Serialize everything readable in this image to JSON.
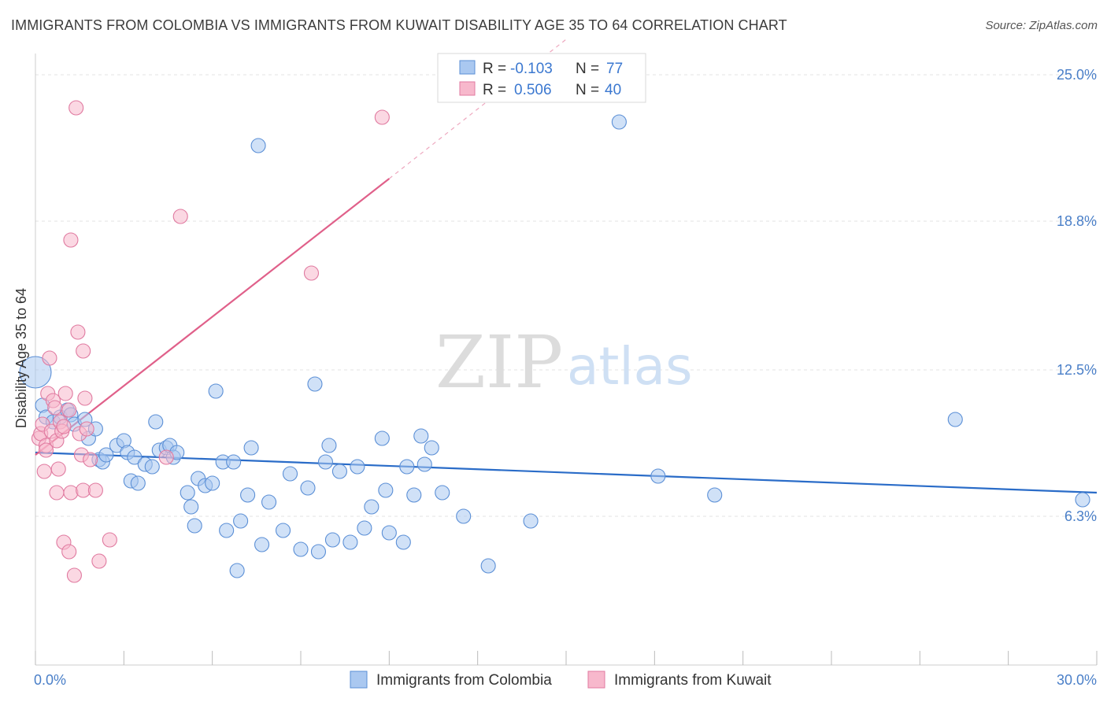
{
  "title": "IMMIGRANTS FROM COLOMBIA VS IMMIGRANTS FROM KUWAIT DISABILITY AGE 35 TO 64 CORRELATION CHART",
  "source": "Source: ZipAtlas.com",
  "watermark": {
    "zip": "ZIP",
    "atlas": "atlas"
  },
  "colors": {
    "blue_fill": "#aac8f0",
    "blue_stroke": "#5b8fd6",
    "blue_line": "#2a6cc8",
    "pink_fill": "#f7b8cc",
    "pink_stroke": "#e07aa0",
    "pink_line": "#e0608a",
    "grid": "#e3e3e3",
    "axis_text": "#4a7fc8"
  },
  "legend": {
    "rows": [
      {
        "r_label": "R =",
        "r_value": "-0.103",
        "n_label": "N =",
        "n_value": "77"
      },
      {
        "r_label": "R =",
        "r_value": "0.506",
        "n_label": "N =",
        "n_value": "40"
      }
    ]
  },
  "chart_data": {
    "type": "scatter",
    "xlabel": "",
    "ylabel": "Disability Age 35 to 64",
    "xlim": [
      0,
      30
    ],
    "ylim": [
      0,
      25.9
    ],
    "x_tick_labels": [
      {
        "value": 0,
        "label": "0.0%"
      },
      {
        "value": 30,
        "label": "30.0%"
      }
    ],
    "y_tick_labels": [
      {
        "value": 6.3,
        "label": "6.3%"
      },
      {
        "value": 12.5,
        "label": "12.5%"
      },
      {
        "value": 18.8,
        "label": "18.8%"
      },
      {
        "value": 25.0,
        "label": "25.0%"
      }
    ],
    "grid": true,
    "series": [
      {
        "name": "Immigrants from Colombia",
        "color": "blue",
        "trend": {
          "x0": 0.0,
          "y0": 9.0,
          "x1": 30.0,
          "y1": 7.3
        },
        "points": [
          [
            0.0,
            12.4,
            20
          ],
          [
            0.2,
            11.0,
            9
          ],
          [
            0.3,
            10.5,
            9
          ],
          [
            0.5,
            10.3,
            9
          ],
          [
            0.7,
            10.5,
            9
          ],
          [
            0.9,
            10.8,
            9
          ],
          [
            1.0,
            10.6,
            9
          ],
          [
            1.1,
            10.2,
            9
          ],
          [
            1.4,
            10.4,
            9
          ],
          [
            1.5,
            9.6,
            9
          ],
          [
            1.7,
            10.0,
            9
          ],
          [
            1.8,
            8.7,
            9
          ],
          [
            1.9,
            8.6,
            9
          ],
          [
            2.0,
            8.9,
            9
          ],
          [
            2.3,
            9.3,
            9
          ],
          [
            2.5,
            9.5,
            9
          ],
          [
            2.6,
            9.0,
            9
          ],
          [
            2.7,
            7.8,
            9
          ],
          [
            2.8,
            8.8,
            9
          ],
          [
            2.9,
            7.7,
            9
          ],
          [
            3.1,
            8.5,
            9
          ],
          [
            3.3,
            8.4,
            9
          ],
          [
            3.4,
            10.3,
            9
          ],
          [
            3.5,
            9.1,
            9
          ],
          [
            3.7,
            9.2,
            9
          ],
          [
            3.8,
            9.3,
            9
          ],
          [
            3.9,
            8.8,
            9
          ],
          [
            4.0,
            9.0,
            9
          ],
          [
            4.3,
            7.3,
            9
          ],
          [
            4.4,
            6.7,
            9
          ],
          [
            4.5,
            5.9,
            9
          ],
          [
            4.6,
            7.9,
            9
          ],
          [
            4.8,
            7.6,
            9
          ],
          [
            5.0,
            7.7,
            9
          ],
          [
            5.1,
            11.6,
            9
          ],
          [
            5.3,
            8.6,
            9
          ],
          [
            5.4,
            5.7,
            9
          ],
          [
            5.6,
            8.6,
            9
          ],
          [
            5.7,
            4.0,
            9
          ],
          [
            5.8,
            6.1,
            9
          ],
          [
            6.0,
            7.2,
            9
          ],
          [
            6.1,
            9.2,
            9
          ],
          [
            6.3,
            22.0,
            9
          ],
          [
            6.4,
            5.1,
            9
          ],
          [
            6.6,
            6.9,
            9
          ],
          [
            7.0,
            5.7,
            9
          ],
          [
            7.2,
            8.1,
            9
          ],
          [
            7.5,
            4.9,
            9
          ],
          [
            7.7,
            7.5,
            9
          ],
          [
            7.9,
            11.9,
            9
          ],
          [
            8.0,
            4.8,
            9
          ],
          [
            8.2,
            8.6,
            9
          ],
          [
            8.3,
            9.3,
            9
          ],
          [
            8.4,
            5.3,
            9
          ],
          [
            8.6,
            8.2,
            9
          ],
          [
            8.9,
            5.2,
            9
          ],
          [
            9.1,
            8.4,
            9
          ],
          [
            9.3,
            5.8,
            9
          ],
          [
            9.5,
            6.7,
            9
          ],
          [
            9.8,
            9.6,
            9
          ],
          [
            9.9,
            7.4,
            9
          ],
          [
            10.0,
            5.6,
            9
          ],
          [
            10.4,
            5.2,
            9
          ],
          [
            10.5,
            8.4,
            9
          ],
          [
            10.7,
            7.2,
            9
          ],
          [
            10.9,
            9.7,
            9
          ],
          [
            11.0,
            8.5,
            9
          ],
          [
            11.2,
            9.2,
            9
          ],
          [
            11.5,
            7.3,
            9
          ],
          [
            12.1,
            6.3,
            9
          ],
          [
            12.8,
            4.2,
            9
          ],
          [
            14.0,
            6.1,
            9
          ],
          [
            16.5,
            23.0,
            9
          ],
          [
            17.6,
            8.0,
            9
          ],
          [
            19.2,
            7.2,
            9
          ],
          [
            26.0,
            10.4,
            9
          ],
          [
            29.6,
            7.0,
            9
          ]
        ]
      },
      {
        "name": "Immigrants from Kuwait",
        "color": "pink",
        "trend": {
          "x0": 0.0,
          "y0": 8.9,
          "x1": 10.0,
          "y1": 20.6
        },
        "trend_dashed": {
          "x0": 10.0,
          "y0": 20.6,
          "x1": 15.0,
          "y1": 26.5
        },
        "points": [
          [
            0.1,
            9.6,
            9
          ],
          [
            0.15,
            9.8,
            9
          ],
          [
            0.2,
            10.2,
            9
          ],
          [
            0.25,
            8.2,
            9
          ],
          [
            0.3,
            9.3,
            9
          ],
          [
            0.35,
            11.5,
            9
          ],
          [
            0.4,
            13.0,
            9
          ],
          [
            0.45,
            9.9,
            9
          ],
          [
            0.5,
            11.2,
            9
          ],
          [
            0.55,
            10.9,
            9
          ],
          [
            0.6,
            9.5,
            9
          ],
          [
            0.65,
            8.3,
            9
          ],
          [
            0.6,
            7.3,
            9
          ],
          [
            0.7,
            10.3,
            9
          ],
          [
            0.75,
            9.9,
            9
          ],
          [
            0.8,
            10.1,
            9
          ],
          [
            0.8,
            5.2,
            9
          ],
          [
            0.85,
            11.5,
            9
          ],
          [
            0.95,
            10.8,
            9
          ],
          [
            0.95,
            4.8,
            9
          ],
          [
            1.0,
            18.0,
            9
          ],
          [
            1.0,
            7.3,
            9
          ],
          [
            1.1,
            3.8,
            9
          ],
          [
            1.15,
            23.6,
            9
          ],
          [
            1.2,
            14.1,
            9
          ],
          [
            1.25,
            9.8,
            9
          ],
          [
            1.3,
            8.9,
            9
          ],
          [
            1.35,
            7.4,
            9
          ],
          [
            1.35,
            13.3,
            9
          ],
          [
            1.4,
            11.3,
            9
          ],
          [
            1.45,
            10.0,
            9
          ],
          [
            1.55,
            8.7,
            9
          ],
          [
            1.7,
            7.4,
            9
          ],
          [
            1.8,
            4.4,
            9
          ],
          [
            2.1,
            5.3,
            9
          ],
          [
            3.7,
            8.8,
            9
          ],
          [
            4.1,
            19.0,
            9
          ],
          [
            7.8,
            16.6,
            9
          ],
          [
            9.8,
            23.2,
            9
          ],
          [
            0.3,
            9.1,
            9
          ]
        ]
      }
    ]
  }
}
